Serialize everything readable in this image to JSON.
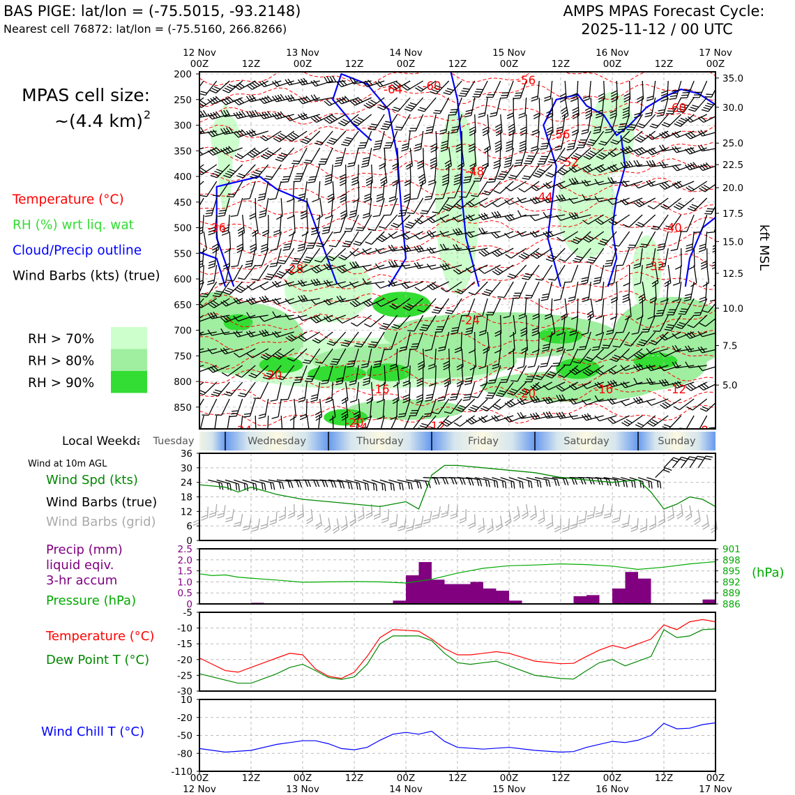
{
  "header": {
    "station_line": "BAS PIGE: lat/lon = (-75.5015, -93.2148)",
    "cell_line": "Nearest cell 76872: lat/lon = (-75.5160, 266.8266)",
    "cycle_title": "AMPS MPAS Forecast Cycle:",
    "cycle_time": "2025-11-12 / 00 UTC"
  },
  "left_panel": {
    "cell_size_label": "MPAS cell size:",
    "cell_size_value": "~(4.4 km)",
    "cell_size_sup": "2",
    "legend": [
      {
        "text": "Temperature (°C)",
        "color": "#ff0000"
      },
      {
        "text": "RH (%) wrt liq. wat",
        "color": "#33dd33"
      },
      {
        "text": "Cloud/Precip outline",
        "color": "#0000ff"
      },
      {
        "text": "Wind Barbs (kts) (true)",
        "color": "#000000"
      }
    ],
    "rh_legend": [
      {
        "text": "RH > 70%",
        "color": "#ccffcc"
      },
      {
        "text": "RH > 80%",
        "color": "#a0eea0"
      },
      {
        "text": "RH > 90%",
        "color": "#33dd33"
      }
    ]
  },
  "time_axis": {
    "top_ticks": [
      {
        "h": 0,
        "l1": "12 Nov",
        "l2": "00Z"
      },
      {
        "h": 12,
        "l1": "",
        "l2": "12Z"
      },
      {
        "h": 24,
        "l1": "13 Nov",
        "l2": "00Z"
      },
      {
        "h": 36,
        "l1": "",
        "l2": "12Z"
      },
      {
        "h": 48,
        "l1": "14 Nov",
        "l2": "00Z"
      },
      {
        "h": 60,
        "l1": "",
        "l2": "12Z"
      },
      {
        "h": 72,
        "l1": "15 Nov",
        "l2": "00Z"
      },
      {
        "h": 84,
        "l1": "",
        "l2": "12Z"
      },
      {
        "h": 96,
        "l1": "16 Nov",
        "l2": "00Z"
      },
      {
        "h": 108,
        "l1": "",
        "l2": "12Z"
      },
      {
        "h": 120,
        "l1": "17 Nov",
        "l2": "00Z"
      }
    ],
    "bottom_ticks": [
      {
        "h": 0,
        "l1": "00Z",
        "l2": "12 Nov"
      },
      {
        "h": 12,
        "l1": "12Z",
        "l2": ""
      },
      {
        "h": 24,
        "l1": "00Z",
        "l2": "13 Nov"
      },
      {
        "h": 36,
        "l1": "12Z",
        "l2": ""
      },
      {
        "h": 48,
        "l1": "00Z",
        "l2": "14 Nov"
      },
      {
        "h": 60,
        "l1": "12Z",
        "l2": ""
      },
      {
        "h": 72,
        "l1": "00Z",
        "l2": "15 Nov"
      },
      {
        "h": 84,
        "l1": "12Z",
        "l2": ""
      },
      {
        "h": 96,
        "l1": "00Z",
        "l2": "16 Nov"
      },
      {
        "h": 108,
        "l1": "12Z",
        "l2": ""
      },
      {
        "h": 120,
        "l1": "00Z",
        "l2": "17 Nov"
      }
    ]
  },
  "weekday_strip": {
    "label": "Local Weekday",
    "days": [
      {
        "name": "Tuesday",
        "start": -8,
        "end": 6
      },
      {
        "name": "Wednesday",
        "start": 6,
        "end": 30
      },
      {
        "name": "Thursday",
        "start": 30,
        "end": 54
      },
      {
        "name": "Friday",
        "start": 54,
        "end": 78
      },
      {
        "name": "Saturday",
        "start": 78,
        "end": 102
      },
      {
        "name": "Sunday",
        "start": 102,
        "end": 120
      }
    ]
  },
  "labels": {
    "wind10m_title": "Wind at 10m AGL",
    "wind_spd": "Wind Spd (kts)",
    "wind_barbs_true": "Wind Barbs (true)",
    "wind_barbs_grid": "Wind Barbs (grid)",
    "precip_1": "Precip (mm)",
    "precip_2": "liquid eqiv.",
    "precip_3": "3-hr accum",
    "pressure": "Pressure (hPa)",
    "pressure_unit": "(hPa)",
    "temp": "Temperature (°C)",
    "dewpoint": "Dew Point T (°C)",
    "windchill": "Wind Chill T (°C)",
    "kft": "kft MSL"
  },
  "colors": {
    "temperature": "#ff0000",
    "rh_label": "#33dd33",
    "cloud_outline": "#0000ff",
    "wind_speed": "#008800",
    "grid_barbs": "#aaaaaa",
    "precip": "#800080",
    "pressure": "#00aa00",
    "dewpoint": "#008800",
    "windchill": "#0000ff"
  },
  "chart_data": [
    {
      "type": "heatmap",
      "name": "cross-section",
      "y_ticks_hpa": [
        200,
        250,
        300,
        350,
        400,
        450,
        500,
        550,
        600,
        650,
        700,
        750,
        800,
        850
      ],
      "right_ticks_kft": [
        "35.0",
        "30.0",
        "25.0",
        "22.5",
        "20.0",
        "17.5",
        "15.0",
        "12.5",
        "10.0",
        "7.5",
        "5.0"
      ],
      "right_ticks_hpa": [
        208,
        265,
        335,
        377,
        422,
        472,
        527,
        589,
        657,
        730,
        807
      ],
      "temperature_labels": [
        {
          "t": "-64",
          "h": 45,
          "p": 230
        },
        {
          "t": "-60",
          "h": 54,
          "p": 223
        },
        {
          "t": "-56",
          "h": 76,
          "p": 212
        },
        {
          "t": "-60",
          "h": 111,
          "p": 266
        },
        {
          "t": "-56",
          "h": 84,
          "p": 318
        },
        {
          "t": "-52",
          "h": 86,
          "p": 372
        },
        {
          "t": "-48",
          "h": 64,
          "p": 390
        },
        {
          "t": "-44",
          "h": 80,
          "p": 440
        },
        {
          "t": "-40",
          "h": 110,
          "p": 500
        },
        {
          "t": "-36",
          "h": 4,
          "p": 500
        },
        {
          "t": "-32",
          "h": 106,
          "p": 575
        },
        {
          "t": "-28",
          "h": 22,
          "p": 580
        },
        {
          "t": "-24",
          "h": 63,
          "p": 680
        },
        {
          "t": "-20",
          "h": 17,
          "p": 787
        },
        {
          "t": "-16",
          "h": 42,
          "p": 815
        },
        {
          "t": "-16",
          "h": 94,
          "p": 815
        },
        {
          "t": "-12",
          "h": 111,
          "p": 815
        },
        {
          "t": "-20",
          "h": 76,
          "p": 823
        },
        {
          "t": "-12",
          "h": 55,
          "p": 887
        },
        {
          "t": "-24",
          "h": 10,
          "p": 895
        },
        {
          "t": "-20",
          "h": 36,
          "p": 880
        },
        {
          "t": "-24",
          "h": 37,
          "p": 890
        },
        {
          "t": "-8",
          "h": 117,
          "p": 895
        }
      ]
    },
    {
      "type": "line",
      "name": "wind10m",
      "ylim": [
        0,
        36
      ],
      "yticks": [
        0,
        6,
        12,
        18,
        24,
        30,
        36
      ],
      "x": [
        0,
        6,
        9,
        12,
        18,
        24,
        30,
        36,
        42,
        48,
        51,
        54,
        57,
        60,
        66,
        72,
        78,
        84,
        90,
        96,
        102,
        105,
        108,
        111,
        114,
        117,
        120
      ],
      "speed_kts": [
        23,
        22,
        20,
        22,
        19,
        17,
        16,
        15,
        14,
        16,
        13,
        27,
        31,
        31,
        30,
        29,
        28,
        26,
        25,
        24,
        25,
        20,
        13,
        15,
        18,
        17,
        14
      ]
    },
    {
      "type": "bar",
      "name": "precip_pressure",
      "precip_ylim": [
        0,
        2.5
      ],
      "precip_yticks": [
        "0",
        "0.5",
        "1.0",
        "1.5",
        "2.0",
        "2.5"
      ],
      "pressure_yticks": [
        "886",
        "889",
        "892",
        "895",
        "898",
        "901"
      ],
      "precip_x_start": [
        12,
        45,
        48,
        51,
        54,
        57,
        60,
        63,
        66,
        69,
        72,
        87,
        90,
        96,
        99,
        102,
        117
      ],
      "precip_mm": [
        0.05,
        0.15,
        1.3,
        1.9,
        1.1,
        0.9,
        0.9,
        1.0,
        0.7,
        0.6,
        0.15,
        0.35,
        0.4,
        0.7,
        1.45,
        1.15,
        0.2
      ],
      "pressure_x": [
        0,
        3,
        6,
        9,
        12,
        18,
        24,
        30,
        36,
        42,
        48,
        54,
        60,
        66,
        72,
        78,
        84,
        90,
        96,
        102,
        108,
        114,
        120
      ],
      "pressure_hpa": [
        894.2,
        893.7,
        893.9,
        893.3,
        893.0,
        892.5,
        891.9,
        892.0,
        892.1,
        892.0,
        891.7,
        892.7,
        894.4,
        895.7,
        896.4,
        896.6,
        896.9,
        896.7,
        896.3,
        895.4,
        896.0,
        896.9,
        897.5
      ]
    },
    {
      "type": "line",
      "name": "temperature_dewpoint",
      "ylim": [
        -30,
        -5
      ],
      "yticks": [
        -30,
        -25,
        -20,
        -15,
        -10,
        -5
      ],
      "x": [
        0,
        6,
        9,
        12,
        18,
        21,
        24,
        27,
        30,
        33,
        36,
        39,
        42,
        45,
        48,
        51,
        54,
        57,
        60,
        63,
        66,
        69,
        72,
        78,
        84,
        87,
        90,
        93,
        96,
        99,
        102,
        105,
        108,
        111,
        114,
        117,
        120
      ],
      "temperature_c": [
        -19.5,
        -23.5,
        -24,
        -22.5,
        -19.5,
        -18,
        -18.5,
        -23,
        -25.3,
        -26,
        -24,
        -19,
        -13,
        -10.5,
        -10.7,
        -11,
        -13.5,
        -16.5,
        -18.5,
        -18.5,
        -18,
        -17.5,
        -18,
        -20.5,
        -21.3,
        -21.2,
        -19,
        -17,
        -15.5,
        -16.5,
        -15,
        -13.5,
        -9,
        -10.5,
        -8,
        -7.3,
        -8
      ],
      "dewpoint_c": [
        -24.5,
        -26.5,
        -27.5,
        -27.5,
        -24.5,
        -22.5,
        -21.5,
        -23.5,
        -25.7,
        -26.3,
        -25.5,
        -21.5,
        -15,
        -12.5,
        -12.5,
        -12.5,
        -14,
        -18,
        -21,
        -21.5,
        -21,
        -20.5,
        -22,
        -25,
        -26,
        -26.2,
        -23.5,
        -21,
        -20,
        -22,
        -20.5,
        -19,
        -10.5,
        -13,
        -12.5,
        -10.5,
        -10.3
      ]
    },
    {
      "type": "line",
      "name": "wind_chill",
      "ylim": [
        -110,
        10
      ],
      "yticks": [
        -110,
        -80,
        -50,
        -20,
        10
      ],
      "x": [
        0,
        6,
        12,
        18,
        21,
        24,
        27,
        30,
        33,
        36,
        39,
        42,
        45,
        48,
        51,
        54,
        57,
        60,
        66,
        72,
        78,
        84,
        87,
        90,
        96,
        99,
        102,
        105,
        108,
        111,
        114,
        117,
        120
      ],
      "wind_chill_c": [
        -72,
        -78,
        -75,
        -65,
        -62,
        -59,
        -59,
        -64,
        -72,
        -74,
        -70,
        -58,
        -48,
        -45,
        -48,
        -43,
        -60,
        -70,
        -73,
        -70,
        -75,
        -78,
        -77,
        -70,
        -60,
        -62,
        -58,
        -50,
        -30,
        -39,
        -38,
        -32,
        -29
      ]
    }
  ]
}
